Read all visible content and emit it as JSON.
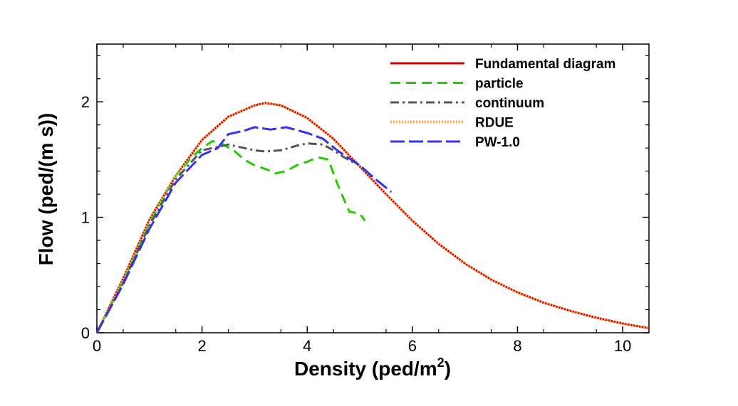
{
  "chart_data": {
    "type": "line",
    "xlabel": "Density (ped/m",
    "xlabel_superscript": "2",
    "xlabel_suffix": ")",
    "ylabel": "Flow (ped/(m s))",
    "xlim": [
      0,
      10.5
    ],
    "ylim": [
      0,
      2.5
    ],
    "x_ticks": [
      0,
      2,
      4,
      6,
      8,
      10
    ],
    "y_ticks": [
      0,
      1,
      2
    ],
    "x_tick_labels": [
      "0",
      "2",
      "4",
      "6",
      "8",
      "10"
    ],
    "y_tick_labels": [
      "0",
      "1",
      "2"
    ],
    "grid": false,
    "legend_position": "top-right",
    "series": [
      {
        "name": "Fundamental diagram",
        "color": "#cc0000",
        "dash": "solid",
        "x": [
          0,
          0.5,
          1,
          1.5,
          2,
          2.5,
          3,
          3.2,
          3.5,
          4,
          4.5,
          5,
          5.5,
          6,
          6.5,
          7,
          7.5,
          8,
          8.5,
          9,
          9.5,
          10,
          10.5
        ],
        "y": [
          0,
          0.47,
          0.98,
          1.36,
          1.67,
          1.87,
          1.97,
          1.99,
          1.97,
          1.86,
          1.68,
          1.44,
          1.2,
          0.97,
          0.77,
          0.6,
          0.46,
          0.35,
          0.26,
          0.19,
          0.13,
          0.08,
          0.04
        ]
      },
      {
        "name": "particle",
        "color": "#22cc00",
        "dash": "dashed",
        "x": [
          0,
          0.5,
          1,
          1.5,
          1.8,
          2.0,
          2.2,
          2.4,
          2.6,
          2.8,
          3.0,
          3.2,
          3.4,
          3.6,
          3.8,
          4.0,
          4.2,
          4.4,
          4.6,
          4.8,
          5.0,
          5.1
        ],
        "y": [
          0,
          0.45,
          0.95,
          1.36,
          1.52,
          1.6,
          1.66,
          1.63,
          1.58,
          1.5,
          1.45,
          1.42,
          1.38,
          1.4,
          1.45,
          1.48,
          1.52,
          1.5,
          1.26,
          1.05,
          1.03,
          0.97
        ]
      },
      {
        "name": "continuum",
        "color": "#555555",
        "dash": "dashdot",
        "x": [
          0,
          0.5,
          1,
          1.5,
          2,
          2.5,
          2.8,
          3,
          3.2,
          3.5,
          3.8,
          4,
          4.3,
          4.5,
          4.7,
          4.9,
          5.0
        ],
        "y": [
          0,
          0.43,
          0.93,
          1.33,
          1.58,
          1.63,
          1.6,
          1.58,
          1.57,
          1.58,
          1.62,
          1.64,
          1.63,
          1.58,
          1.52,
          1.47,
          1.45
        ]
      },
      {
        "name": "RDUE",
        "color": "#ffaa55",
        "dash": "dotted",
        "x": [
          0,
          0.5,
          1,
          1.5,
          2,
          2.5,
          3,
          3.2,
          3.5,
          4,
          4.5,
          5,
          5.5,
          6,
          6.5,
          7,
          7.5,
          8,
          8.5,
          9,
          9.5,
          10,
          10.5
        ],
        "y": [
          0,
          0.47,
          0.98,
          1.36,
          1.67,
          1.87,
          1.97,
          1.99,
          1.97,
          1.86,
          1.68,
          1.44,
          1.2,
          0.97,
          0.77,
          0.6,
          0.46,
          0.35,
          0.26,
          0.19,
          0.13,
          0.08,
          0.04
        ]
      },
      {
        "name": "PW-1.0",
        "color": "#3333ee",
        "dash": "longdash",
        "x": [
          0,
          0.5,
          1,
          1.5,
          2,
          2.3,
          2.5,
          2.8,
          3.0,
          3.3,
          3.6,
          4.0,
          4.3,
          4.6,
          5.0,
          5.3,
          5.6
        ],
        "y": [
          0,
          0.42,
          0.9,
          1.3,
          1.54,
          1.6,
          1.72,
          1.75,
          1.78,
          1.76,
          1.78,
          1.73,
          1.68,
          1.57,
          1.45,
          1.33,
          1.22
        ]
      }
    ]
  }
}
